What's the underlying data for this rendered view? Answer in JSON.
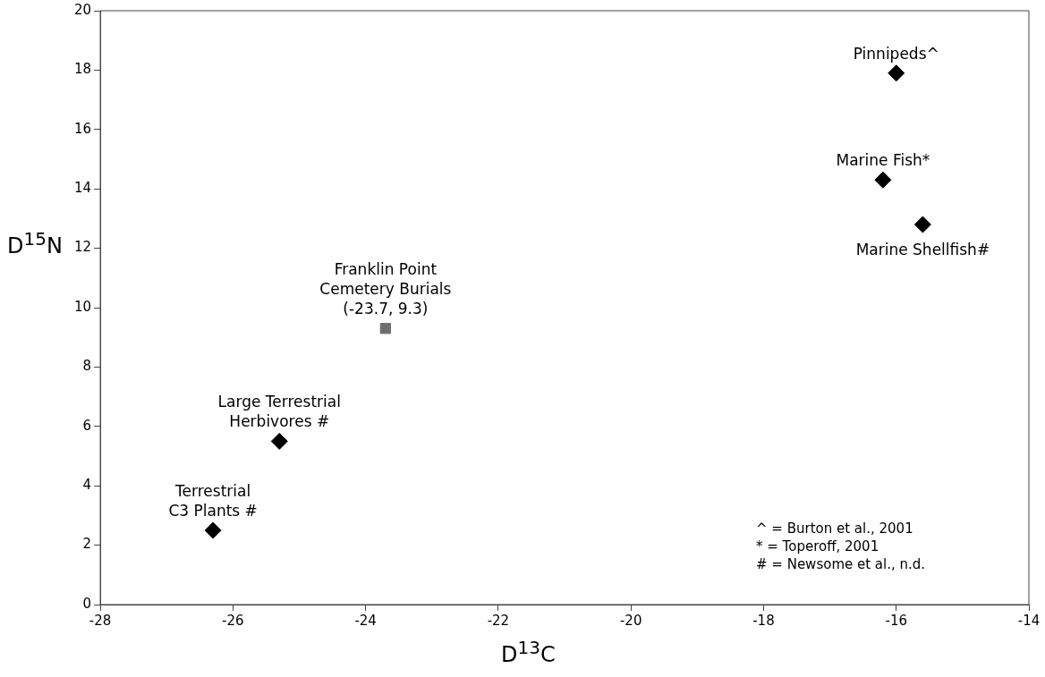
{
  "chart_data": {
    "type": "scatter",
    "xlabel": "D$^{13}$C",
    "ylabel": "D$^{15}$N",
    "series": [
      {
        "color": "#000000",
        "marker": "diamond",
        "x": [
          -26.3,
          -25.3,
          -16.0,
          -16.2,
          -15.6
        ],
        "values": [
          2.5,
          5.5,
          17.9,
          14.3,
          12.8
        ]
      },
      {
        "color": "#6e6e6e",
        "marker": "square",
        "x": [
          -23.7
        ],
        "values": [
          9.3
        ]
      }
    ],
    "xlim": [
      -28,
      -14
    ],
    "xticks": [
      -28,
      -26,
      -24,
      -22,
      -20,
      -18,
      -16,
      -14
    ],
    "ylim": [
      0,
      20
    ],
    "yticks": [
      0,
      2,
      4,
      6,
      8,
      10,
      12,
      14,
      16,
      18,
      20
    ],
    "grid": false,
    "legend": false,
    "annotations": [
      {
        "text": "Terrestrial\nC3 Plants #",
        "x": -26.3,
        "y": 2.5
      },
      {
        "text": "Large Terrestrial\nHerbivores #",
        "x": -25.3,
        "y": 5.5
      },
      {
        "text": "Franklin Point\nCemetery Burials\n(-23.7, 9.3)",
        "x": -23.7,
        "y": 9.3
      },
      {
        "text": "Pinnipeds^",
        "x": -16.0,
        "y": 17.9
      },
      {
        "text": "Marine Fish*",
        "x": -16.2,
        "y": 14.3
      },
      {
        "text": "Marine Shellfish#",
        "x": -15.6,
        "y": 12.8
      },
      "^ = Burton et al., 2001",
      "* = Toperoff, 2001",
      "# = Newsome et al., n.d."
    ]
  }
}
